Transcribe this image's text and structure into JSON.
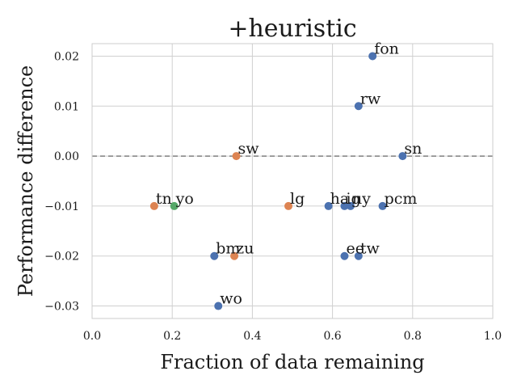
{
  "chart_data": {
    "type": "scatter",
    "title": "+heuristic",
    "xlabel": "Fraction of data remaining",
    "ylabel": "Performance difference",
    "xlim": [
      0.0,
      1.0
    ],
    "ylim": [
      -0.0325,
      0.0225
    ],
    "xticks": [
      0.0,
      0.2,
      0.4,
      0.6,
      0.8,
      1.0
    ],
    "xtick_labels": [
      "0.0",
      "0.2",
      "0.4",
      "0.6",
      "0.8",
      "1.0"
    ],
    "yticks": [
      0.02,
      0.01,
      0.0,
      -0.01,
      -0.02,
      -0.03
    ],
    "ytick_labels": [
      "0.02",
      "0.01",
      "0.00",
      "−0.01",
      "−0.02",
      "−0.03"
    ],
    "grid": true,
    "reference_line_y": 0.0,
    "colors": {
      "blue": "#4c72b0",
      "orange": "#dd8452",
      "green": "#55a868"
    },
    "points": [
      {
        "label": "fon",
        "x": 0.7,
        "y": 0.02,
        "color": "blue"
      },
      {
        "label": "rw",
        "x": 0.665,
        "y": 0.01,
        "color": "blue"
      },
      {
        "label": "sw",
        "x": 0.36,
        "y": 0.0,
        "color": "orange"
      },
      {
        "label": "sn",
        "x": 0.775,
        "y": 0.0,
        "color": "blue"
      },
      {
        "label": "tn",
        "x": 0.155,
        "y": -0.01,
        "color": "orange"
      },
      {
        "label": "yo",
        "x": 0.205,
        "y": -0.01,
        "color": "green"
      },
      {
        "label": "lg",
        "x": 0.49,
        "y": -0.01,
        "color": "orange"
      },
      {
        "label": "ha",
        "x": 0.59,
        "y": -0.01,
        "color": "blue"
      },
      {
        "label": "ig",
        "x": 0.63,
        "y": -0.01,
        "color": "blue"
      },
      {
        "label": "ny",
        "x": 0.645,
        "y": -0.01,
        "color": "blue"
      },
      {
        "label": "pcm",
        "x": 0.725,
        "y": -0.01,
        "color": "blue"
      },
      {
        "label": "bm",
        "x": 0.305,
        "y": -0.02,
        "color": "blue"
      },
      {
        "label": "zu",
        "x": 0.355,
        "y": -0.02,
        "color": "orange"
      },
      {
        "label": "ee",
        "x": 0.63,
        "y": -0.02,
        "color": "blue"
      },
      {
        "label": "tw",
        "x": 0.665,
        "y": -0.02,
        "color": "blue"
      },
      {
        "label": "wo",
        "x": 0.315,
        "y": -0.03,
        "color": "blue"
      }
    ]
  }
}
